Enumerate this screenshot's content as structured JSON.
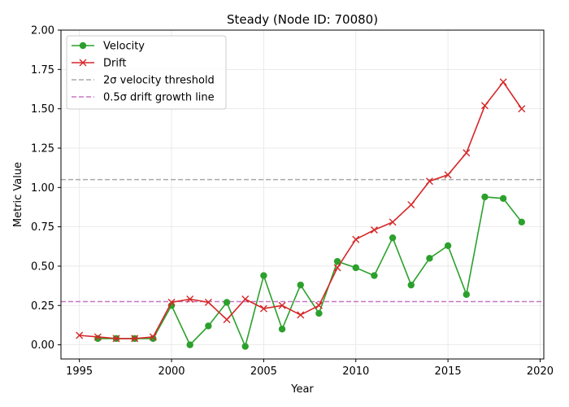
{
  "chart_data": {
    "type": "line",
    "title": "Steady (Node ID: 70080)",
    "xlabel": "Year",
    "ylabel": "Metric Value",
    "xlim": [
      1994,
      2020.2
    ],
    "ylim": [
      -0.09,
      2.0
    ],
    "xticks": [
      1995,
      2000,
      2005,
      2010,
      2015,
      2020
    ],
    "yticks": [
      0.0,
      0.25,
      0.5,
      0.75,
      1.0,
      1.25,
      1.5,
      1.75,
      2.0
    ],
    "ytick_labels": [
      "0.00",
      "0.25",
      "0.50",
      "0.75",
      "1.00",
      "1.25",
      "1.50",
      "1.75",
      "2.00"
    ],
    "grid": true,
    "legend_position": "upper-left",
    "series": [
      {
        "name": "Velocity",
        "color": "#2ca02c",
        "marker": "circle",
        "x": [
          1996,
          1997,
          1998,
          1999,
          2000,
          2001,
          2002,
          2003,
          2004,
          2005,
          2006,
          2007,
          2008,
          2009,
          2010,
          2011,
          2012,
          2013,
          2014,
          2015,
          2016,
          2017,
          2018,
          2019
        ],
        "y": [
          0.04,
          0.04,
          0.04,
          0.04,
          0.25,
          0.0,
          0.12,
          0.27,
          -0.01,
          0.44,
          0.1,
          0.38,
          0.2,
          0.53,
          0.49,
          0.44,
          0.68,
          0.38,
          0.55,
          0.63,
          0.32,
          0.94,
          0.93,
          0.78
        ]
      },
      {
        "name": "Drift",
        "color": "#d62728",
        "marker": "x",
        "x": [
          1995,
          1996,
          1997,
          1998,
          1999,
          2000,
          2001,
          2002,
          2003,
          2004,
          2005,
          2006,
          2007,
          2008,
          2009,
          2010,
          2011,
          2012,
          2013,
          2014,
          2015,
          2016,
          2017,
          2018,
          2019
        ],
        "y": [
          0.06,
          0.05,
          0.04,
          0.04,
          0.05,
          0.27,
          0.29,
          0.27,
          0.16,
          0.29,
          0.23,
          0.25,
          0.19,
          0.25,
          0.49,
          0.67,
          0.73,
          0.78,
          0.89,
          1.04,
          1.08,
          1.22,
          1.52,
          1.67,
          1.5
        ]
      }
    ],
    "reference_lines": [
      {
        "name": "2σ velocity threshold",
        "y": 1.05,
        "color": "#a9a9a9",
        "style": "dashed"
      },
      {
        "name": "0.5σ drift growth line",
        "y": 0.275,
        "color": "#c875c4",
        "style": "dashed"
      }
    ]
  }
}
